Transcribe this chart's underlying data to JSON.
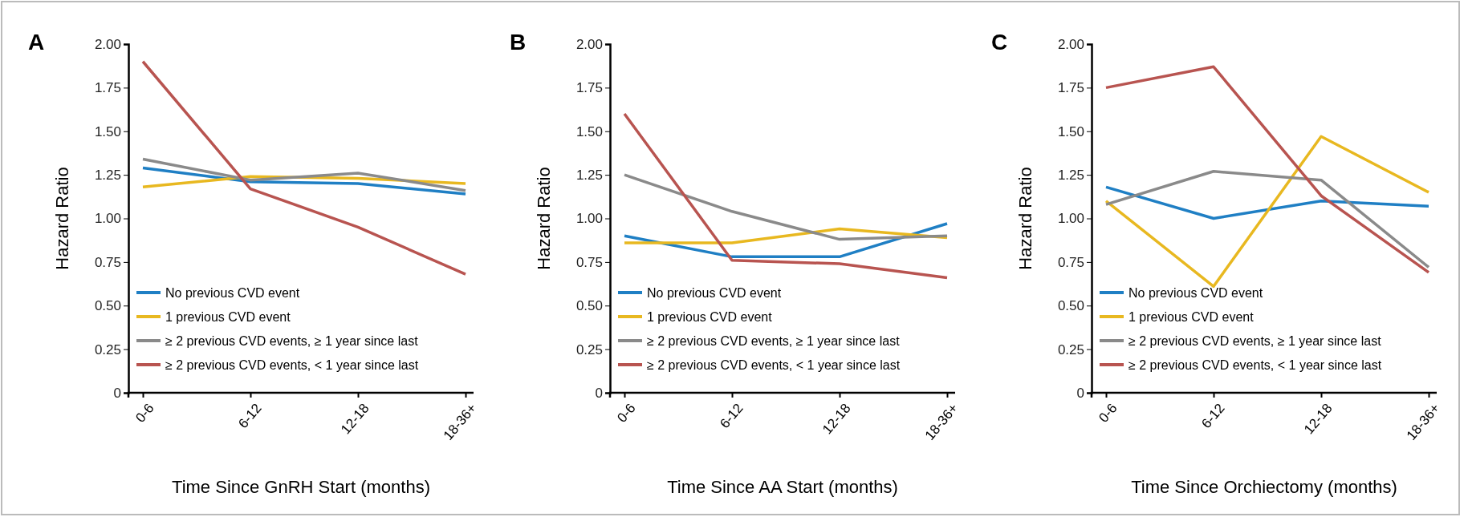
{
  "chart_data": [
    {
      "type": "line",
      "title": "A",
      "xlabel": "Time Since GnRH Start (months)",
      "ylabel": "Hazard Ratio",
      "categories": [
        "0-6",
        "6-12",
        "12-18",
        "18-36+"
      ],
      "ylim": [
        0,
        2
      ],
      "yticks": [
        {
          "value": 0,
          "label": "0"
        },
        {
          "value": 0.25,
          "label": "0.25"
        },
        {
          "value": 0.5,
          "label": "0.50"
        },
        {
          "value": 0.75,
          "label": "0.75"
        },
        {
          "value": 1,
          "label": "1.00"
        },
        {
          "value": 1.25,
          "label": "1.25"
        },
        {
          "value": 1.5,
          "label": "1.50"
        },
        {
          "value": 1.75,
          "label": "1.75"
        },
        {
          "value": 2,
          "label": "2.00"
        }
      ],
      "legend": "bottom left",
      "series": [
        {
          "name": "No previous CVD event",
          "color": "#1f7fc4",
          "values": [
            1.29,
            1.21,
            1.2,
            1.14
          ]
        },
        {
          "name": "1 previous CVD event",
          "color": "#e8b820",
          "values": [
            1.18,
            1.24,
            1.23,
            1.2
          ]
        },
        {
          "name": "≥ 2 previous CVD events, ≥ 1 year since last",
          "color": "#8a8a8a",
          "values": [
            1.34,
            1.22,
            1.26,
            1.16
          ]
        },
        {
          "name": "≥ 2 previous CVD events, < 1 year since last",
          "color": "#b85450",
          "values": [
            1.9,
            1.17,
            0.95,
            0.68
          ]
        }
      ]
    },
    {
      "type": "line",
      "title": "B",
      "xlabel": "Time Since AA Start (months)",
      "ylabel": "Hazard Ratio",
      "categories": [
        "0-6",
        "6-12",
        "12-18",
        "18-36+"
      ],
      "ylim": [
        0,
        2
      ],
      "yticks": [
        {
          "value": 0,
          "label": "0"
        },
        {
          "value": 0.25,
          "label": "0.25"
        },
        {
          "value": 0.5,
          "label": "0.50"
        },
        {
          "value": 0.75,
          "label": "0.75"
        },
        {
          "value": 1,
          "label": "1.00"
        },
        {
          "value": 1.25,
          "label": "1.25"
        },
        {
          "value": 1.5,
          "label": "1.50"
        },
        {
          "value": 1.75,
          "label": "1.75"
        },
        {
          "value": 2,
          "label": "2.00"
        }
      ],
      "legend": "bottom left",
      "series": [
        {
          "name": "No previous CVD event",
          "color": "#1f7fc4",
          "values": [
            0.9,
            0.78,
            0.78,
            0.97
          ]
        },
        {
          "name": "1 previous CVD event",
          "color": "#e8b820",
          "values": [
            0.86,
            0.86,
            0.94,
            0.89
          ]
        },
        {
          "name": "≥ 2 previous CVD events, ≥ 1 year since last",
          "color": "#8a8a8a",
          "values": [
            1.25,
            1.04,
            0.88,
            0.9
          ]
        },
        {
          "name": "≥ 2 previous CVD events, < 1 year since last",
          "color": "#b85450",
          "values": [
            1.6,
            0.76,
            0.74,
            0.66
          ]
        }
      ]
    },
    {
      "type": "line",
      "title": "C",
      "xlabel": "Time Since Orchiectomy (months)",
      "ylabel": "Hazard Ratio",
      "categories": [
        "0-6",
        "6-12",
        "12-18",
        "18-36+"
      ],
      "ylim": [
        0,
        2
      ],
      "yticks": [
        {
          "value": 0,
          "label": "0"
        },
        {
          "value": 0.25,
          "label": "0.25"
        },
        {
          "value": 0.5,
          "label": "0.50"
        },
        {
          "value": 0.75,
          "label": "0.75"
        },
        {
          "value": 1,
          "label": "1.00"
        },
        {
          "value": 1.25,
          "label": "1.25"
        },
        {
          "value": 1.5,
          "label": "1.50"
        },
        {
          "value": 1.75,
          "label": "1.75"
        },
        {
          "value": 2,
          "label": "2.00"
        }
      ],
      "legend": "bottom left",
      "series": [
        {
          "name": "No previous CVD event",
          "color": "#1f7fc4",
          "values": [
            1.18,
            1.0,
            1.1,
            1.07
          ]
        },
        {
          "name": "1 previous CVD event",
          "color": "#e8b820",
          "values": [
            1.1,
            0.61,
            1.47,
            1.15
          ]
        },
        {
          "name": "≥ 2 previous CVD events, ≥ 1 year since last",
          "color": "#8a8a8a",
          "values": [
            1.08,
            1.27,
            1.22,
            0.72
          ]
        },
        {
          "name": "≥ 2 previous CVD events, < 1 year since last",
          "color": "#b85450",
          "values": [
            1.75,
            1.87,
            1.13,
            0.69
          ]
        }
      ]
    }
  ]
}
